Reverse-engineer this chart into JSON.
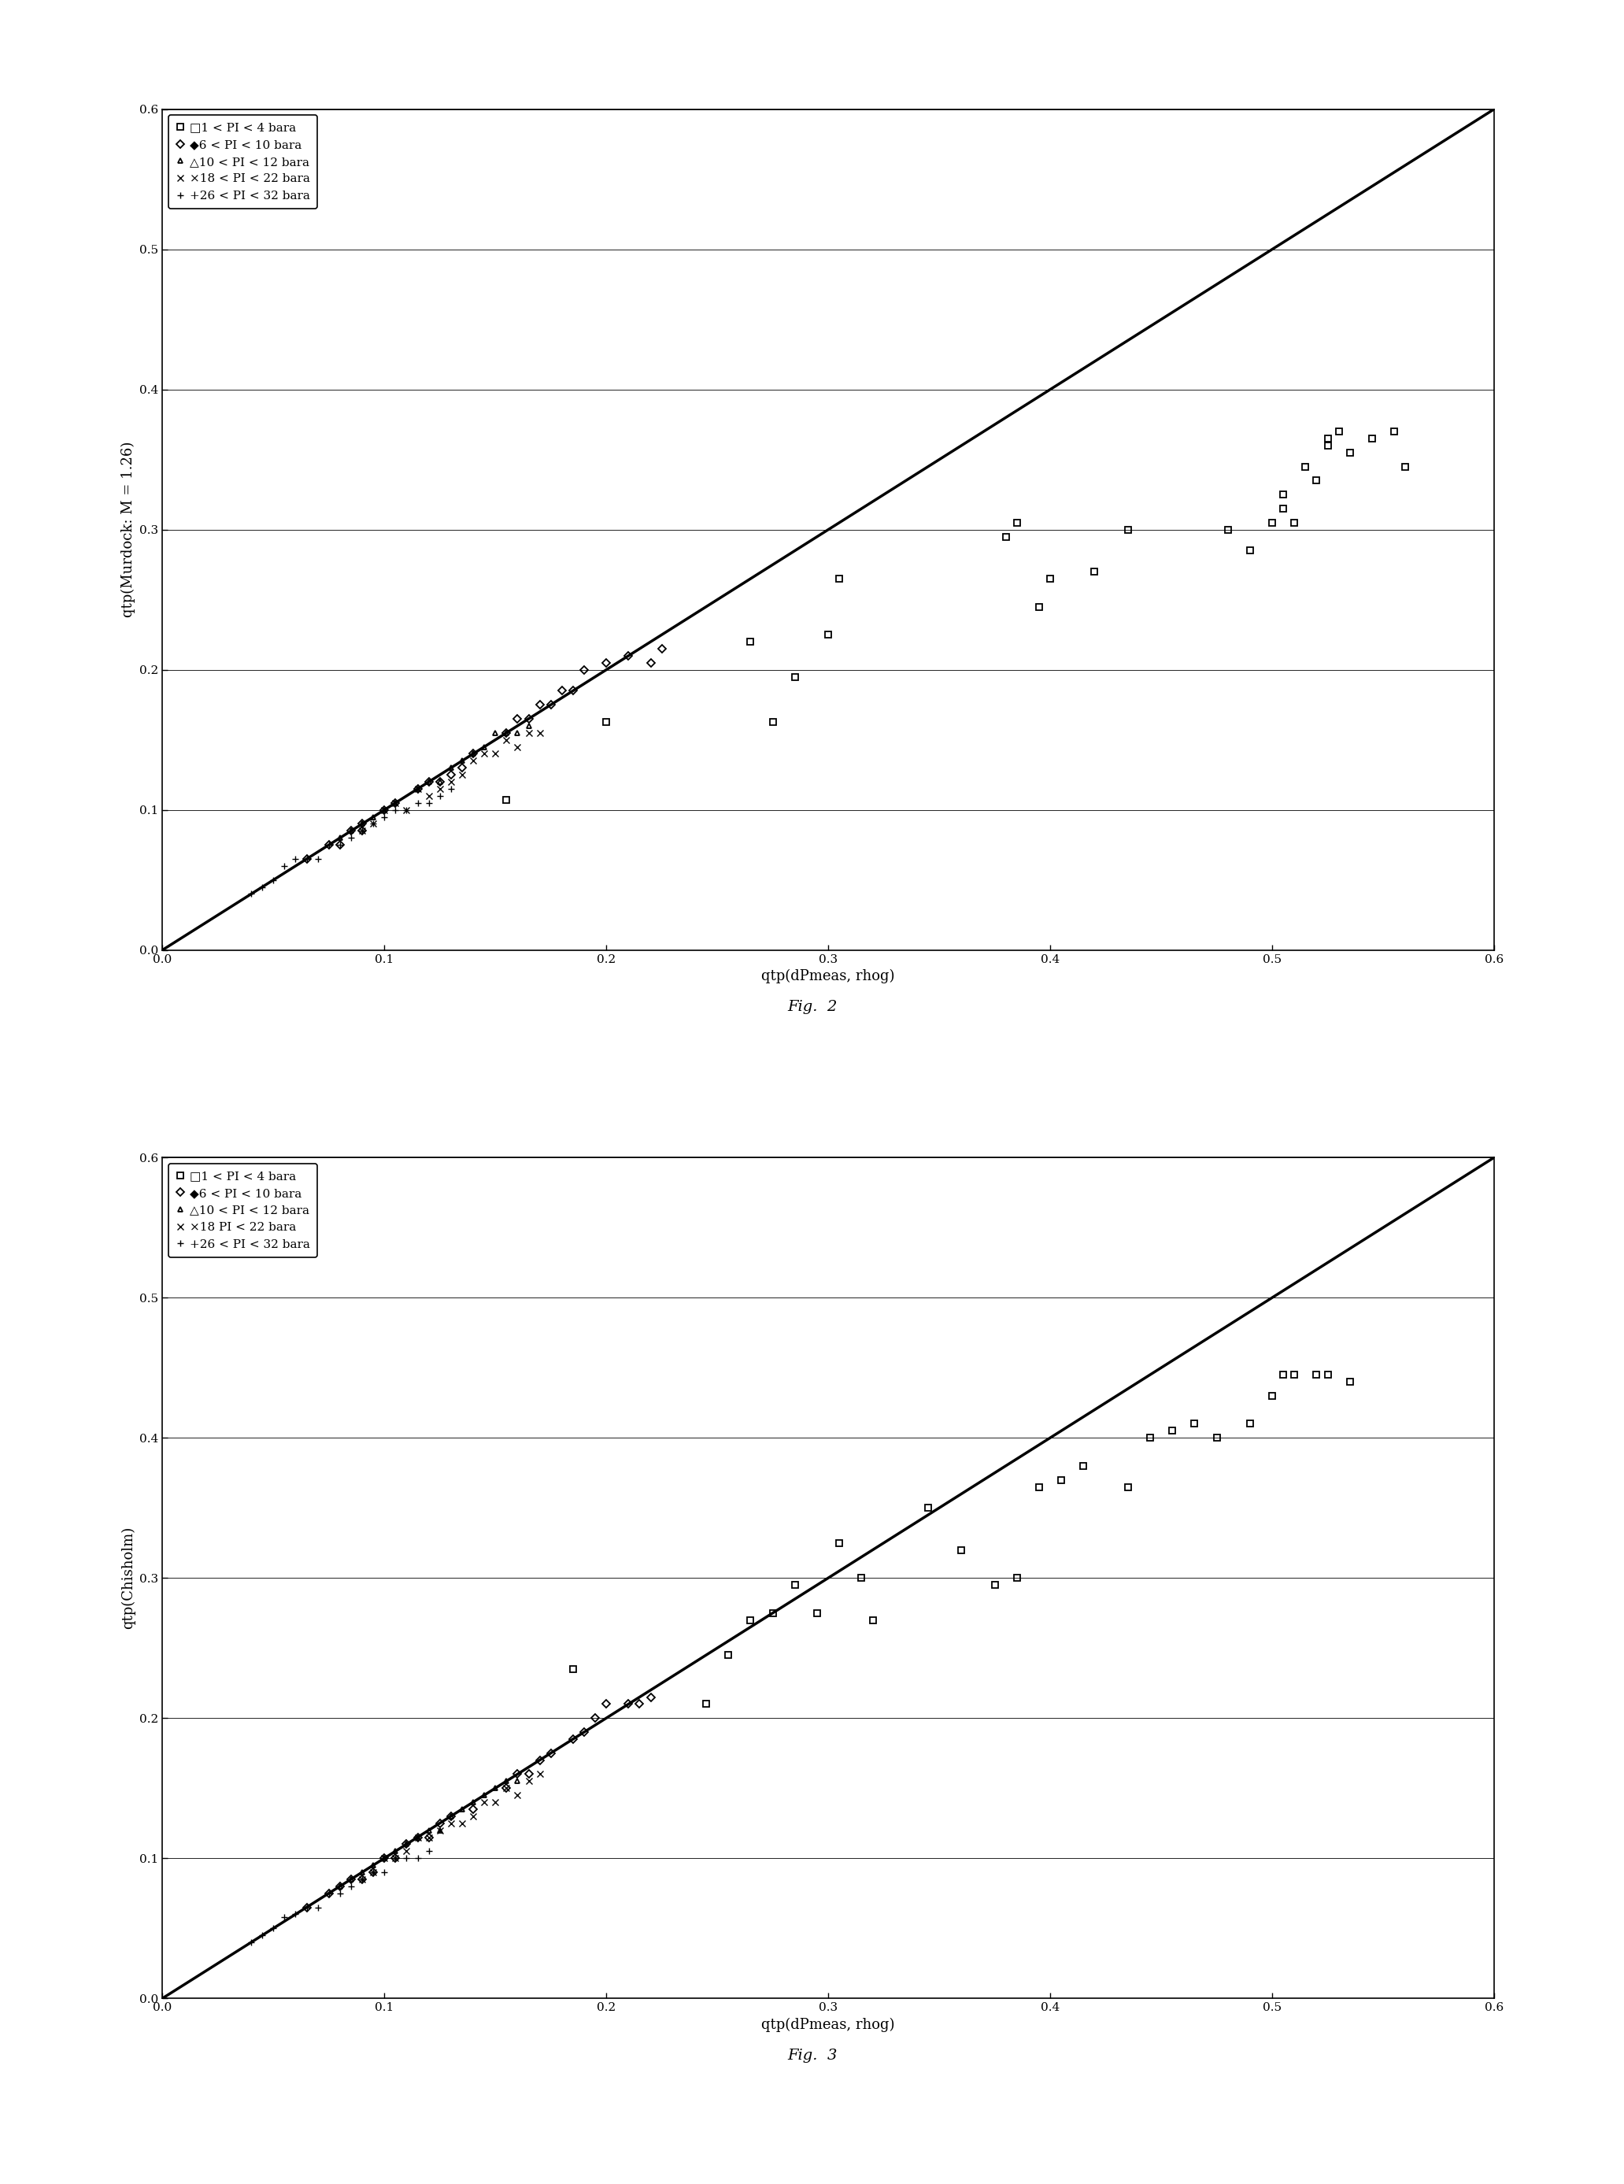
{
  "fig2": {
    "xlabel": "qtp(dPmeas, rhog)",
    "ylabel": "qtp(Murdock: M = 1.26)",
    "xlim": [
      0.0,
      0.6
    ],
    "ylim": [
      0.0,
      0.6
    ],
    "xticks": [
      0.0,
      0.1,
      0.2,
      0.3,
      0.4,
      0.5,
      0.6
    ],
    "yticks": [
      0.0,
      0.1,
      0.2,
      0.3,
      0.4,
      0.5,
      0.6
    ],
    "figcaption": "Fig.  2",
    "legend_entries": [
      "□1 < PI < 4 bara",
      "◆6 < PI < 10 bara",
      "△10 < PI < 12 bara",
      "×18 < PI < 22 bara",
      "+26 < PI < 32 bara"
    ],
    "series": {
      "squares": {
        "x": [
          0.155,
          0.2,
          0.265,
          0.275,
          0.285,
          0.3,
          0.305,
          0.38,
          0.385,
          0.395,
          0.4,
          0.42,
          0.435,
          0.48,
          0.49,
          0.5,
          0.505,
          0.505,
          0.51,
          0.515,
          0.52,
          0.525,
          0.525,
          0.53,
          0.535,
          0.545,
          0.555,
          0.56
        ],
        "y": [
          0.107,
          0.163,
          0.22,
          0.163,
          0.195,
          0.225,
          0.265,
          0.295,
          0.305,
          0.245,
          0.265,
          0.27,
          0.3,
          0.3,
          0.285,
          0.305,
          0.315,
          0.325,
          0.305,
          0.345,
          0.335,
          0.36,
          0.365,
          0.37,
          0.355,
          0.365,
          0.37,
          0.345
        ],
        "marker": "s",
        "color": "black",
        "markersize": 6,
        "fillstyle": "none"
      },
      "diamonds": {
        "x": [
          0.065,
          0.075,
          0.08,
          0.085,
          0.09,
          0.09,
          0.1,
          0.105,
          0.115,
          0.12,
          0.125,
          0.13,
          0.135,
          0.14,
          0.155,
          0.16,
          0.165,
          0.17,
          0.175,
          0.18,
          0.185,
          0.19,
          0.2,
          0.21,
          0.22,
          0.225
        ],
        "y": [
          0.065,
          0.075,
          0.075,
          0.085,
          0.085,
          0.09,
          0.1,
          0.105,
          0.115,
          0.12,
          0.12,
          0.125,
          0.13,
          0.14,
          0.155,
          0.165,
          0.165,
          0.175,
          0.175,
          0.185,
          0.185,
          0.2,
          0.205,
          0.21,
          0.205,
          0.215
        ],
        "marker": "D",
        "color": "black",
        "markersize": 5,
        "fillstyle": "none"
      },
      "triangles": {
        "x": [
          0.08,
          0.085,
          0.09,
          0.095,
          0.1,
          0.105,
          0.115,
          0.12,
          0.125,
          0.13,
          0.135,
          0.14,
          0.145,
          0.15,
          0.155,
          0.16,
          0.165
        ],
        "y": [
          0.08,
          0.085,
          0.09,
          0.095,
          0.1,
          0.105,
          0.115,
          0.12,
          0.12,
          0.13,
          0.135,
          0.14,
          0.145,
          0.155,
          0.155,
          0.155,
          0.16
        ],
        "marker": "^",
        "color": "black",
        "markersize": 5,
        "fillstyle": "none"
      },
      "crosses_x": {
        "x": [
          0.09,
          0.095,
          0.1,
          0.105,
          0.11,
          0.115,
          0.12,
          0.125,
          0.13,
          0.135,
          0.14,
          0.145,
          0.15,
          0.155,
          0.16,
          0.165,
          0.17
        ],
        "y": [
          0.085,
          0.09,
          0.1,
          0.105,
          0.1,
          0.115,
          0.11,
          0.115,
          0.12,
          0.125,
          0.135,
          0.14,
          0.14,
          0.15,
          0.145,
          0.155,
          0.155
        ],
        "marker": "x",
        "color": "black",
        "markersize": 6
      },
      "plus": {
        "x": [
          0.04,
          0.045,
          0.05,
          0.055,
          0.06,
          0.065,
          0.07,
          0.075,
          0.08,
          0.085,
          0.09,
          0.095,
          0.1,
          0.105,
          0.11,
          0.115,
          0.12,
          0.125,
          0.13
        ],
        "y": [
          0.04,
          0.045,
          0.05,
          0.06,
          0.065,
          0.065,
          0.065,
          0.075,
          0.075,
          0.08,
          0.085,
          0.09,
          0.095,
          0.1,
          0.1,
          0.105,
          0.105,
          0.11,
          0.115
        ],
        "marker": "+",
        "color": "black",
        "markersize": 6
      }
    }
  },
  "fig3": {
    "xlabel": "qtp(dPmeas, rhog)",
    "ylabel": "qtp(Chisholm)",
    "xlim": [
      0.0,
      0.6
    ],
    "ylim": [
      0.0,
      0.6
    ],
    "xticks": [
      0.0,
      0.1,
      0.2,
      0.3,
      0.4,
      0.5,
      0.6
    ],
    "yticks": [
      0.0,
      0.1,
      0.2,
      0.3,
      0.4,
      0.5,
      0.6
    ],
    "figcaption": "Fig.  3",
    "legend_entries": [
      "□1 < PI < 4 bara",
      "◆6 < PI < 10 bara",
      "△10 < PI < 12 bara",
      "×18 PI < 22 bara",
      "+26 < PI < 32 bara"
    ],
    "series": {
      "squares": {
        "x": [
          0.185,
          0.245,
          0.255,
          0.265,
          0.275,
          0.285,
          0.295,
          0.305,
          0.315,
          0.32,
          0.345,
          0.36,
          0.375,
          0.385,
          0.395,
          0.405,
          0.415,
          0.435,
          0.445,
          0.455,
          0.465,
          0.475,
          0.49,
          0.5,
          0.505,
          0.51,
          0.52,
          0.525,
          0.535
        ],
        "y": [
          0.235,
          0.21,
          0.245,
          0.27,
          0.275,
          0.295,
          0.275,
          0.325,
          0.3,
          0.27,
          0.35,
          0.32,
          0.295,
          0.3,
          0.365,
          0.37,
          0.38,
          0.365,
          0.4,
          0.405,
          0.41,
          0.4,
          0.41,
          0.43,
          0.445,
          0.445,
          0.445,
          0.445,
          0.44
        ],
        "marker": "s",
        "color": "black",
        "markersize": 6,
        "fillstyle": "none"
      },
      "diamonds": {
        "x": [
          0.065,
          0.075,
          0.08,
          0.085,
          0.09,
          0.095,
          0.1,
          0.105,
          0.11,
          0.115,
          0.12,
          0.125,
          0.13,
          0.14,
          0.155,
          0.16,
          0.165,
          0.17,
          0.175,
          0.185,
          0.19,
          0.195,
          0.2,
          0.21,
          0.215,
          0.22
        ],
        "y": [
          0.065,
          0.075,
          0.08,
          0.085,
          0.085,
          0.09,
          0.1,
          0.1,
          0.11,
          0.115,
          0.115,
          0.125,
          0.13,
          0.135,
          0.15,
          0.16,
          0.16,
          0.17,
          0.175,
          0.185,
          0.19,
          0.2,
          0.21,
          0.21,
          0.21,
          0.215
        ],
        "marker": "D",
        "color": "black",
        "markersize": 5,
        "fillstyle": "none"
      },
      "triangles": {
        "x": [
          0.08,
          0.085,
          0.09,
          0.095,
          0.1,
          0.105,
          0.11,
          0.115,
          0.12,
          0.125,
          0.13,
          0.135,
          0.14,
          0.145,
          0.15,
          0.155,
          0.16
        ],
        "y": [
          0.08,
          0.085,
          0.09,
          0.095,
          0.1,
          0.105,
          0.11,
          0.115,
          0.12,
          0.12,
          0.13,
          0.135,
          0.14,
          0.145,
          0.15,
          0.155,
          0.155
        ],
        "marker": "^",
        "color": "black",
        "markersize": 5,
        "fillstyle": "none"
      },
      "crosses_x": {
        "x": [
          0.09,
          0.095,
          0.1,
          0.105,
          0.11,
          0.115,
          0.12,
          0.125,
          0.13,
          0.135,
          0.14,
          0.145,
          0.15,
          0.155,
          0.16,
          0.165,
          0.17
        ],
        "y": [
          0.085,
          0.09,
          0.1,
          0.1,
          0.105,
          0.115,
          0.115,
          0.12,
          0.125,
          0.125,
          0.13,
          0.14,
          0.14,
          0.15,
          0.145,
          0.155,
          0.16
        ],
        "marker": "x",
        "color": "black",
        "markersize": 6
      },
      "plus": {
        "x": [
          0.04,
          0.045,
          0.05,
          0.055,
          0.06,
          0.065,
          0.07,
          0.075,
          0.08,
          0.085,
          0.09,
          0.095,
          0.1,
          0.105,
          0.11,
          0.115,
          0.12
        ],
        "y": [
          0.04,
          0.045,
          0.05,
          0.058,
          0.06,
          0.065,
          0.065,
          0.075,
          0.075,
          0.08,
          0.085,
          0.09,
          0.09,
          0.1,
          0.1,
          0.1,
          0.105
        ],
        "marker": "+",
        "color": "black",
        "markersize": 6
      }
    }
  },
  "background_color": "#ffffff",
  "line_color": "black",
  "font_family": "DejaVu Serif"
}
